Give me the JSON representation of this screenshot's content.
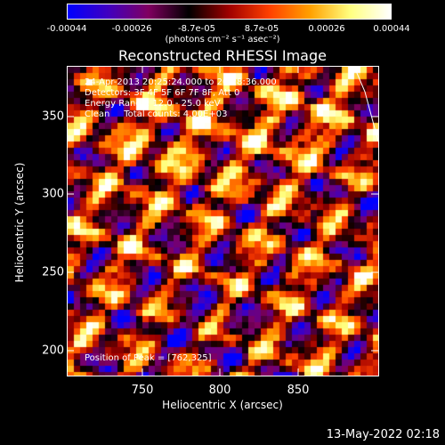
{
  "colorbar": {
    "ticks": [
      "-0.00044",
      "-0.00026",
      "-8.7e-05",
      "8.7e-05",
      "0.00026",
      "0.00044"
    ],
    "unit": "(photons cm⁻² s⁻¹ asec⁻²)",
    "colors": [
      "#0000ff",
      "#4000c0",
      "#800060",
      "#000000",
      "#a00000",
      "#ff4000",
      "#ffa000",
      "#ffff80",
      "#ffffff"
    ]
  },
  "plot": {
    "title": "Reconstructed RHESSI Image",
    "info_lines": [
      "24-Apr-2013 20:25:24.000 to 20:28:36.000",
      "Detectors: 3F 4F 5F 6F 7F 8F, Att 0",
      "Energy Range: 12.0 - 25.0 keV",
      "Clean     Total counts: 4.00E+03"
    ],
    "peak_label": "Position of Peak = [762,325]",
    "x_label": "Heliocentric X (arcsec)",
    "y_label": "Heliocentric Y (arcsec)",
    "x_ticks": [
      "750",
      "800",
      "850"
    ],
    "y_ticks": [
      "200",
      "250",
      "300",
      "350"
    ]
  },
  "timestamp": "13-May-2022 02:18"
}
